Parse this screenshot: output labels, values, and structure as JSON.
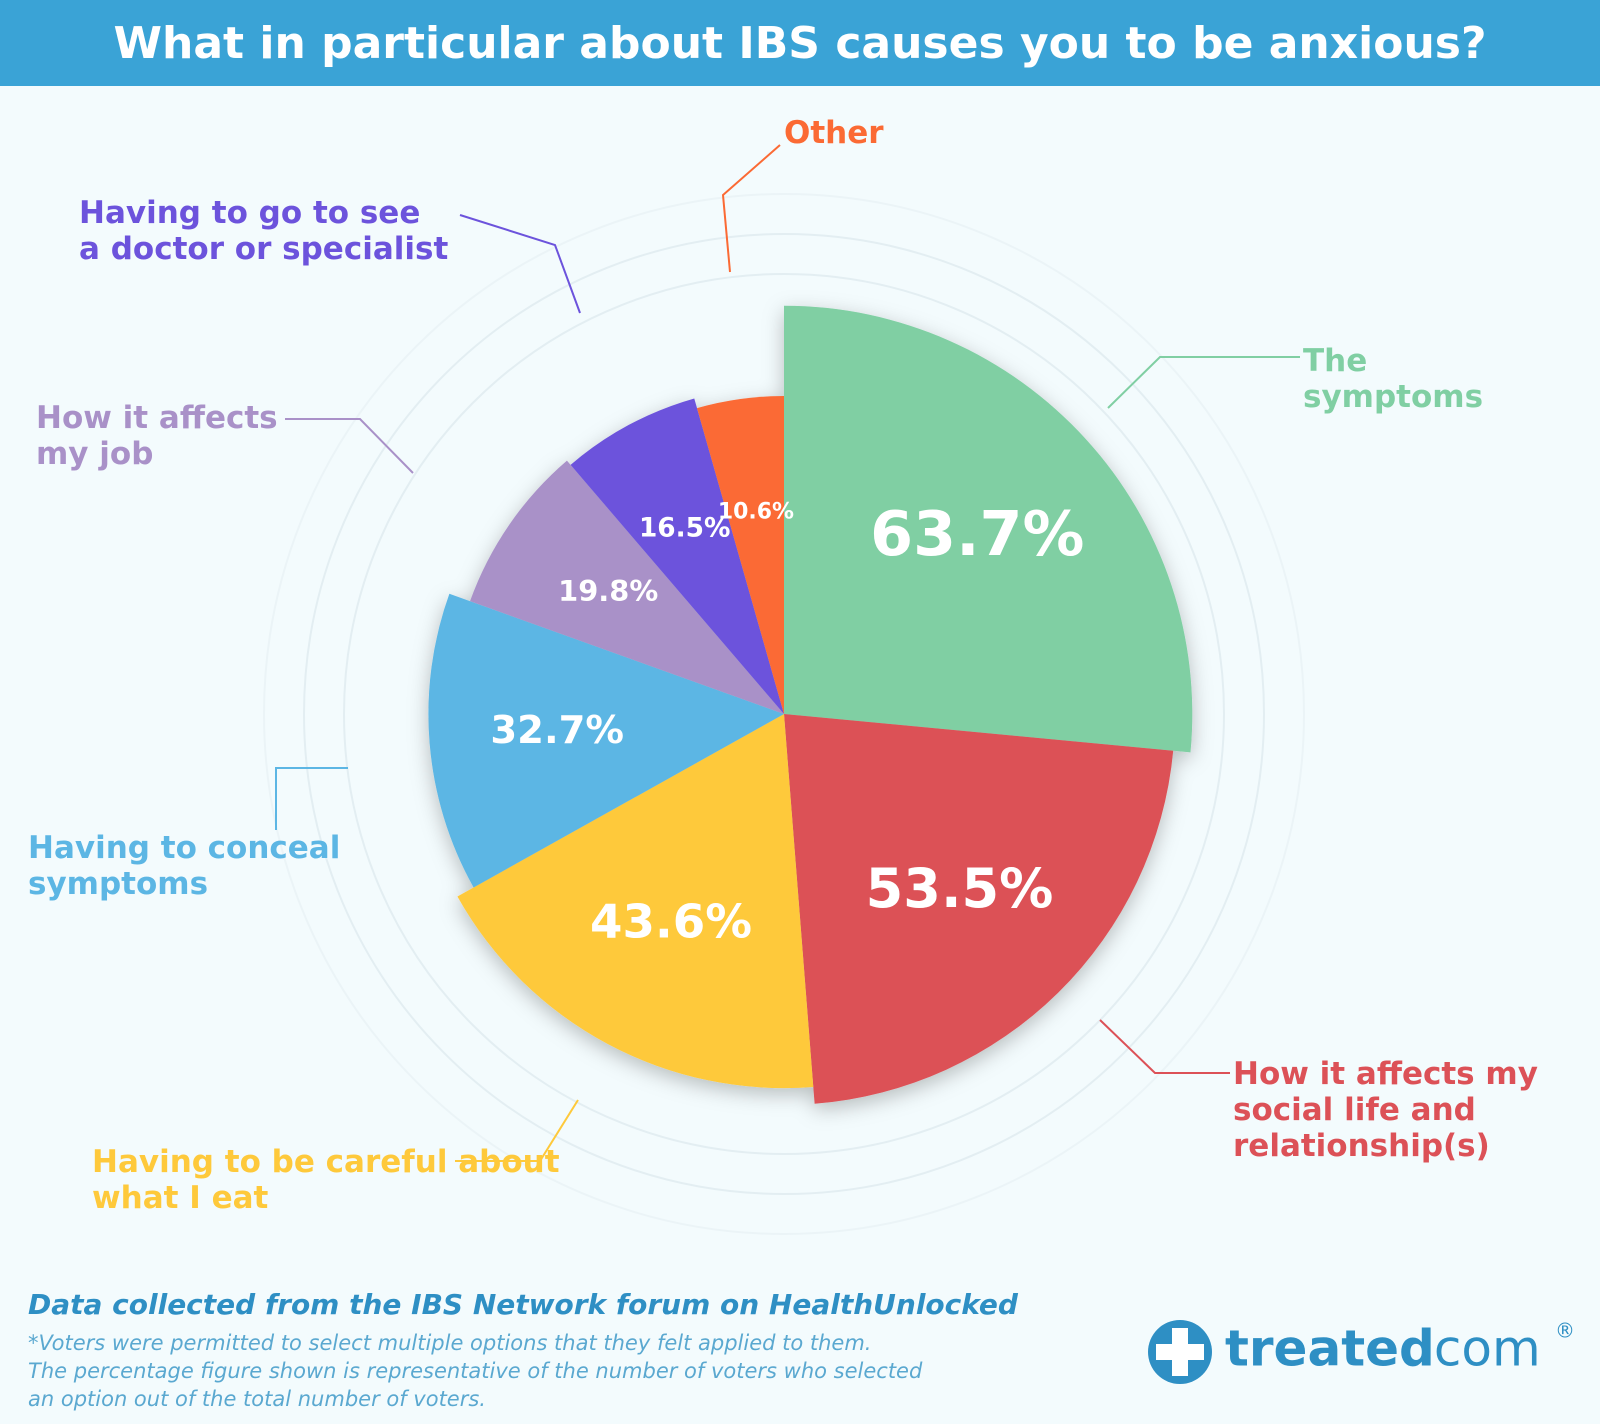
{
  "chart_data": {
    "type": "pie",
    "title": "What in particular about IBS causes you to be anxious?",
    "categories": [
      "The symptoms",
      "How it affects my social life and relationship(s)",
      "Having to be careful about what I eat",
      "Having to conceal symptoms",
      "How it affects my job",
      "Having to go to see a doctor or specialist",
      "Other"
    ],
    "values": [
      63.7,
      53.5,
      43.6,
      32.7,
      19.8,
      16.5,
      10.6
    ],
    "value_labels": [
      "63.7%",
      "53.5%",
      "43.6%",
      "32.7%",
      "19.8%",
      "16.5%",
      "10.6%"
    ],
    "colors": [
      "#80cfa3",
      "#dc5157",
      "#fec93b",
      "#5cb6e4",
      "#a991c8",
      "#6c53dc",
      "#fb6a34"
    ]
  },
  "footer": {
    "source": "Data collected from the IBS Network forum on HealthUnlocked",
    "note": [
      "*Voters were permitted to select multiple options that they felt applied to them.",
      "The percentage figure shown is representative of the number of voters who selected",
      "an option out of the total number of voters."
    ]
  },
  "logo": {
    "name": "treated",
    "suffix": ".com",
    "mark": "®"
  }
}
